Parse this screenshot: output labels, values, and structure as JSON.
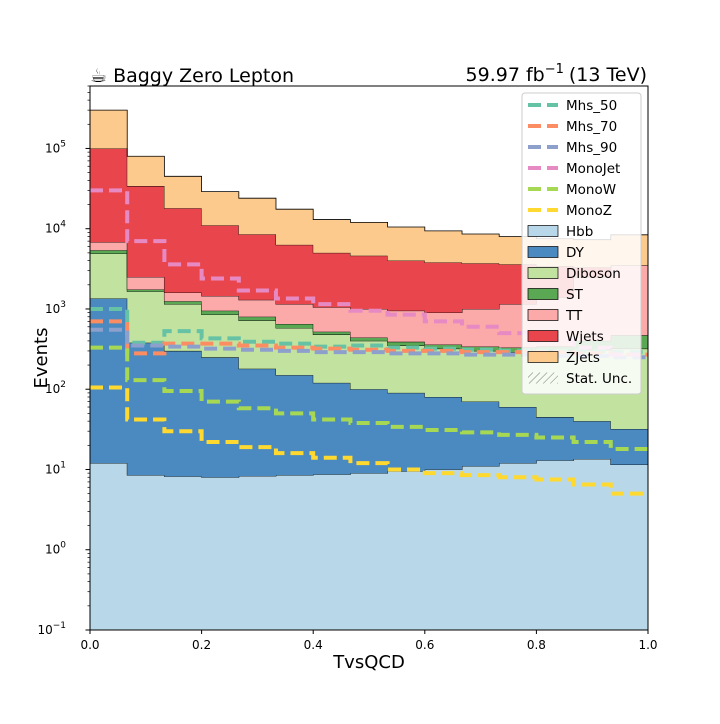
{
  "figure": {
    "title_left": "☕ Baggy Zero Lepton",
    "lumi": "59.97 fb",
    "lumi_sup": "−1",
    "energy": "(13 TeV)"
  },
  "chart_data": {
    "type": "stacked-histogram",
    "xlabel": "TvsQCD",
    "ylabel": "Events",
    "xlim": [
      0.0,
      1.0
    ],
    "ylim": [
      0.1,
      600000
    ],
    "yscale": "log",
    "xticks": [
      0.0,
      0.2,
      0.4,
      0.6,
      0.8,
      1.0
    ],
    "xtick_labels": [
      "0.0",
      "0.2",
      "0.4",
      "0.6",
      "0.8",
      "1.0"
    ],
    "yticks": [
      {
        "base": "10",
        "exp": "−1",
        "value": 0.1
      },
      {
        "base": "10",
        "exp": "0",
        "value": 1
      },
      {
        "base": "10",
        "exp": "1",
        "value": 10
      },
      {
        "base": "10",
        "exp": "2",
        "value": 100
      },
      {
        "base": "10",
        "exp": "3",
        "value": 1000
      },
      {
        "base": "10",
        "exp": "4",
        "value": 10000
      },
      {
        "base": "10",
        "exp": "5",
        "value": 100000
      }
    ],
    "bin_edges": [
      0,
      0.0667,
      0.1333,
      0.2,
      0.2667,
      0.3333,
      0.4,
      0.4667,
      0.5333,
      0.6,
      0.6667,
      0.7333,
      0.8,
      0.8667,
      0.9333,
      1.0
    ],
    "stack_order_bottom_to_top": [
      "Hbb",
      "DY",
      "Diboson",
      "ST",
      "TT",
      "Wjets",
      "ZJets"
    ],
    "stack_cumulative_tops": {
      "Hbb": [
        12,
        8.5,
        8.2,
        8,
        8.3,
        8.5,
        8.7,
        9,
        9.5,
        10,
        11,
        12,
        13,
        13.5,
        11.5
      ],
      "DY": [
        1350,
        380,
        300,
        250,
        180,
        150,
        120,
        100,
        90,
        80,
        70,
        60,
        45,
        40,
        32
      ],
      "Diboson": [
        4900,
        1650,
        1150,
        850,
        720,
        580,
        480,
        400,
        350,
        320,
        300,
        290,
        300,
        310,
        320
      ],
      "ST": [
        5400,
        1750,
        1250,
        950,
        800,
        650,
        520,
        440,
        390,
        360,
        340,
        330,
        340,
        400,
        470
      ],
      "TT": [
        6800,
        2500,
        1600,
        1450,
        1300,
        1150,
        1050,
        1000,
        950,
        900,
        1000,
        1150,
        1400,
        2500,
        5500
      ],
      "Wjets": [
        100000,
        34000,
        18000,
        11000,
        8500,
        6300,
        5000,
        4600,
        4000,
        3800,
        3700,
        3600,
        3400,
        3300,
        3500
      ],
      "ZJets": [
        300000,
        80000,
        45000,
        29000,
        24000,
        17500,
        13000,
        12000,
        10500,
        9400,
        8600,
        8000,
        7500,
        7300,
        8400
      ]
    },
    "signals": [
      {
        "name": "Mhs_50",
        "values": [
          1000,
          380,
          530,
          430,
          390,
          370,
          340,
          350,
          330,
          320,
          310,
          300,
          300,
          300,
          290
        ]
      },
      {
        "name": "Mhs_70",
        "values": [
          700,
          280,
          370,
          370,
          350,
          330,
          320,
          310,
          300,
          300,
          290,
          290,
          290,
          280,
          270
        ]
      },
      {
        "name": "Mhs_90",
        "values": [
          550,
          350,
          340,
          320,
          310,
          300,
          290,
          290,
          280,
          280,
          270,
          270,
          260,
          260,
          250
        ]
      },
      {
        "name": "MonoJet",
        "values": [
          30000,
          7000,
          3600,
          2400,
          1700,
          1350,
          1150,
          950,
          850,
          700,
          600,
          500,
          400,
          330,
          270
        ]
      },
      {
        "name": "MonoW",
        "values": [
          330,
          130,
          95,
          70,
          58,
          50,
          42,
          38,
          34,
          31,
          29,
          27,
          25,
          22,
          18
        ]
      },
      {
        "name": "MonoZ",
        "values": [
          105,
          42,
          30,
          22,
          19,
          16,
          14,
          12,
          10,
          9,
          8.5,
          8,
          7.5,
          6.5,
          5
        ]
      }
    ],
    "legend": {
      "placement": "top-right",
      "entries": [
        {
          "label": "Mhs_50",
          "kind": "line",
          "color": "#66c2a5"
        },
        {
          "label": "Mhs_70",
          "kind": "line",
          "color": "#fc8d62"
        },
        {
          "label": "Mhs_90",
          "kind": "line",
          "color": "#8da0cb"
        },
        {
          "label": "MonoJet",
          "kind": "line",
          "color": "#e78ac3"
        },
        {
          "label": "MonoW",
          "kind": "line",
          "color": "#a6d854"
        },
        {
          "label": "MonoZ",
          "kind": "line",
          "color": "#ffd92f"
        },
        {
          "label": "Hbb",
          "kind": "patch",
          "color": "#b8d8e9"
        },
        {
          "label": "DY",
          "kind": "patch",
          "color": "#4a8ac0"
        },
        {
          "label": "Diboson",
          "kind": "patch",
          "color": "#c2e3a0"
        },
        {
          "label": "ST",
          "kind": "patch",
          "color": "#5aa854"
        },
        {
          "label": "TT",
          "kind": "patch",
          "color": "#fba9a9"
        },
        {
          "label": "Wjets",
          "kind": "patch",
          "color": "#e8464c"
        },
        {
          "label": "ZJets",
          "kind": "patch",
          "color": "#fdca8e"
        },
        {
          "label": "Stat. Unc.",
          "kind": "hatch",
          "color": "#555555"
        }
      ]
    }
  }
}
